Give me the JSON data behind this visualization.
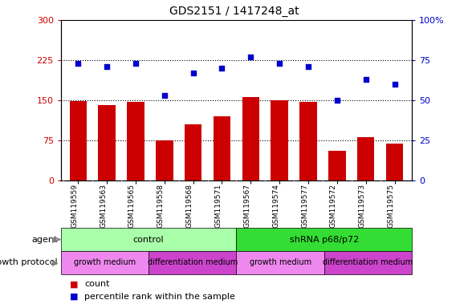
{
  "title": "GDS2151 / 1417248_at",
  "samples": [
    "GSM119559",
    "GSM119563",
    "GSM119565",
    "GSM119558",
    "GSM119568",
    "GSM119571",
    "GSM119567",
    "GSM119574",
    "GSM119577",
    "GSM119572",
    "GSM119573",
    "GSM119575"
  ],
  "counts": [
    148,
    140,
    147,
    75,
    105,
    120,
    155,
    150,
    147,
    55,
    80,
    68
  ],
  "percentiles": [
    73,
    71,
    73,
    53,
    67,
    70,
    77,
    73,
    71,
    50,
    63,
    60
  ],
  "bar_color": "#cc0000",
  "dot_color": "#0000cc",
  "left_ylim": [
    0,
    300
  ],
  "right_ylim": [
    0,
    100
  ],
  "left_yticks": [
    0,
    75,
    150,
    225,
    300
  ],
  "right_yticks": [
    0,
    25,
    50,
    75,
    100
  ],
  "right_yticklabels": [
    "0",
    "25",
    "50",
    "75",
    "100%"
  ],
  "gridlines": [
    75,
    150,
    225
  ],
  "agent_groups": [
    {
      "label": "control",
      "start": 0,
      "end": 6,
      "color": "#aaffaa"
    },
    {
      "label": "shRNA p68/p72",
      "start": 6,
      "end": 12,
      "color": "#33dd33"
    }
  ],
  "growth_groups": [
    {
      "label": "growth medium",
      "start": 0,
      "end": 3,
      "color": "#ee88ee"
    },
    {
      "label": "differentiation medium",
      "start": 3,
      "end": 6,
      "color": "#cc44cc"
    },
    {
      "label": "growth medium",
      "start": 6,
      "end": 9,
      "color": "#ee88ee"
    },
    {
      "label": "differentiation medium",
      "start": 9,
      "end": 12,
      "color": "#cc44cc"
    }
  ],
  "legend_count_color": "#cc0000",
  "legend_pct_color": "#0000cc",
  "agent_label": "agent",
  "growth_label": "growth protocol",
  "legend_count": "count",
  "legend_pct": "percentile rank within the sample",
  "xtick_bg_color": "#cccccc"
}
